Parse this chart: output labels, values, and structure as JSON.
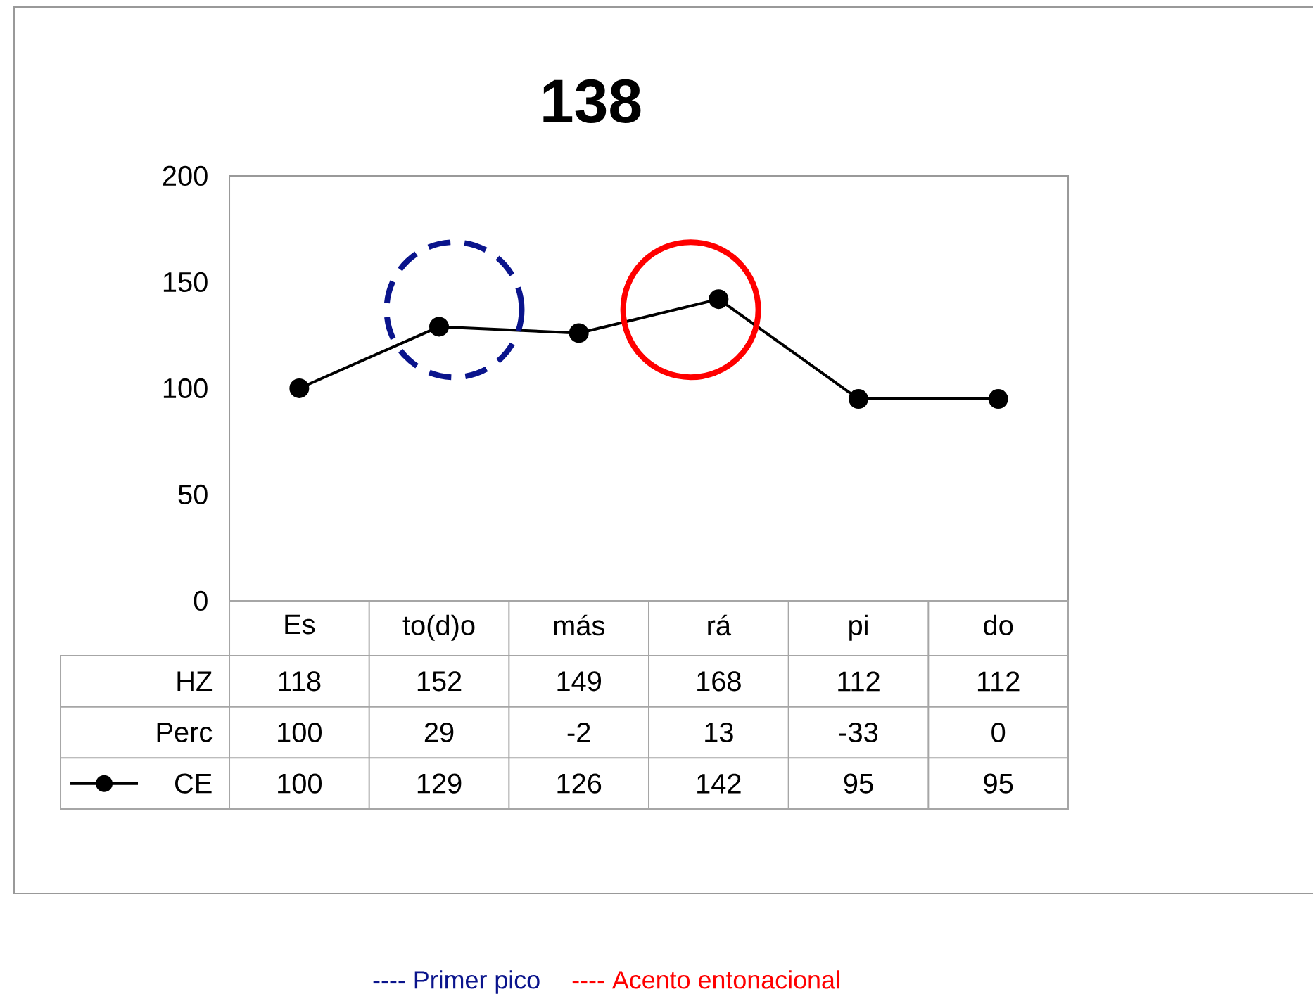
{
  "chart_data": {
    "type": "line",
    "title": "138",
    "categories": [
      "Es",
      "to(d)o",
      "más",
      "rá",
      "pi",
      "do"
    ],
    "series": [
      {
        "name": "CE",
        "color": "#000000",
        "values": [
          100,
          129,
          126,
          142,
          95,
          95
        ]
      }
    ],
    "ylim": [
      0,
      200
    ],
    "yticks": [
      0,
      50,
      100,
      150,
      200
    ],
    "marker": "circle",
    "line_style": "solid",
    "data_labels": true,
    "annotations": [
      "---- Primer pico",
      "---- Acento entonacional",
      "HZ",
      "118",
      "152",
      "149",
      "168",
      "112",
      "112",
      "Perc",
      "100",
      "29",
      "-2",
      "13",
      "-33",
      "0"
    ]
  }
}
